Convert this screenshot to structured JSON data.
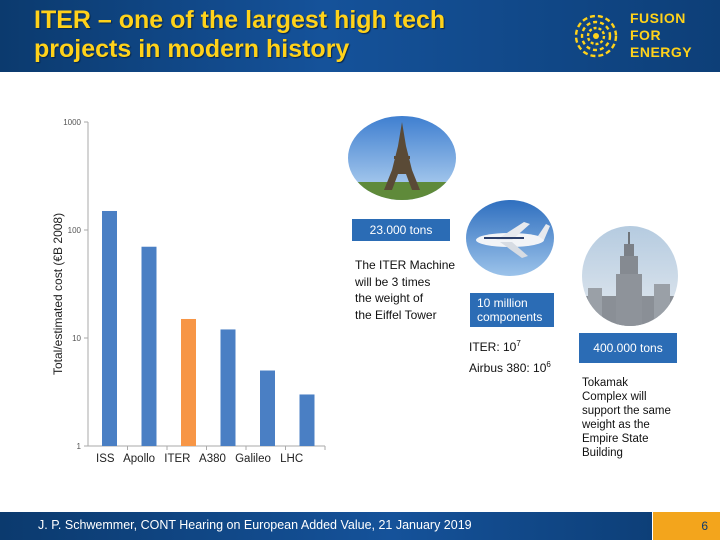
{
  "header": {
    "title_line1": "ITER – one of the largest high tech",
    "title_line2": "projects in modern history",
    "logo_line1": "FUSION",
    "logo_line2": "FOR",
    "logo_line3": "ENERGY",
    "bg_color": "#15529a",
    "title_color": "#ffd21a"
  },
  "chart_data": {
    "type": "bar",
    "ylabel": "Total/estimated cost (€B 2008)",
    "yscale": "log",
    "ylim": [
      1,
      1000
    ],
    "y_ticks": [
      "1000",
      "100",
      "10",
      "1"
    ],
    "y_tick_values": [
      1000,
      100,
      10,
      1
    ],
    "categories": [
      "ISS",
      "Apollo",
      "ITER",
      "A380",
      "Galileo",
      "LHC"
    ],
    "values": [
      150,
      70,
      15,
      12,
      5,
      3
    ],
    "colors": [
      "#4a7fc4",
      "#4a7fc4",
      "#f79646",
      "#4a7fc4",
      "#4a7fc4",
      "#4a7fc4"
    ]
  },
  "callouts": {
    "eiffel_tons": "23.000  tons",
    "eiffel_text": [
      "The ITER Machine",
      "will be 3 times",
      "the weight  of",
      "the Eiffel Tower"
    ],
    "components": [
      "10 million",
      "components"
    ],
    "iter_parts": "ITER: 10",
    "iter_exp": "7",
    "airbus_parts": "Airbus 380: 10",
    "airbus_exp": "6",
    "empire_tons": "400.000 tons",
    "tokamak_text": [
      "Tokamak",
      "Complex will",
      "support the same",
      "weight as the",
      "Empire State",
      "Building"
    ],
    "box_color": "#2b6cb5"
  },
  "footer": {
    "text": "J. P. Schwemmer, CONT Hearing on European Added Value, 21 January 2019",
    "page": "6",
    "page_color": "#f3a51c"
  }
}
